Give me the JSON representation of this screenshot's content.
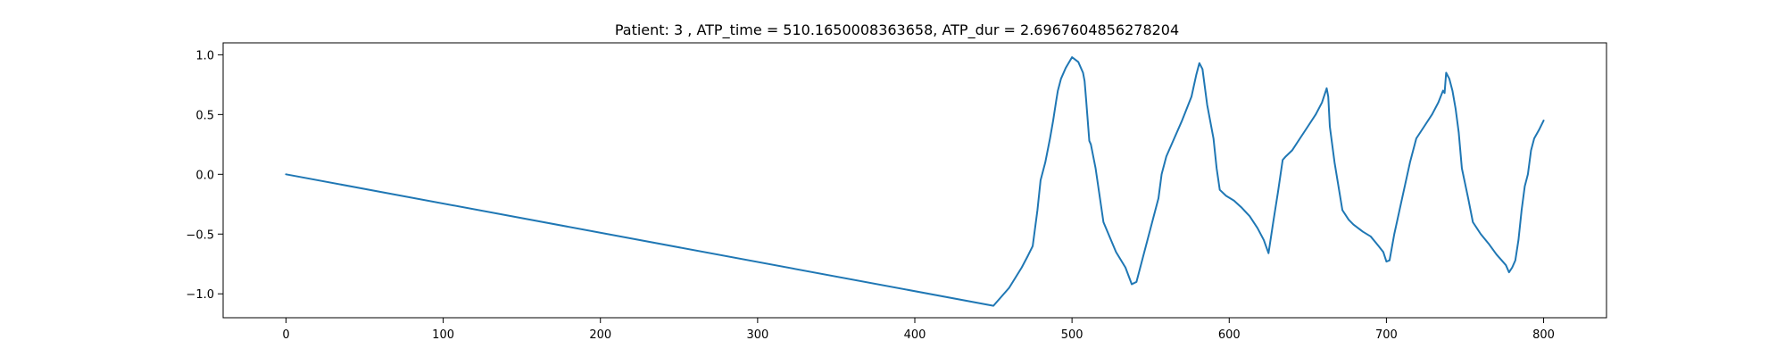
{
  "chart_data": {
    "type": "line",
    "title": "Patient: 3 , ATP_time = 510.1650008363658, ATP_dur = 2.6967604856278204",
    "xlabel": "",
    "ylabel": "",
    "xlim": [
      -40,
      840
    ],
    "ylim": [
      -1.2,
      1.1
    ],
    "xticks": [
      0,
      100,
      200,
      300,
      400,
      500,
      600,
      700,
      800
    ],
    "yticks": [
      -1.0,
      -0.5,
      0.0,
      0.5,
      1.0
    ],
    "xtick_labels": [
      "0",
      "100",
      "200",
      "300",
      "400",
      "500",
      "600",
      "700",
      "800"
    ],
    "ytick_labels": [
      "−1.0",
      "−0.5",
      "0.0",
      "0.5",
      "1.0"
    ],
    "grid": false,
    "line_color": "#1f77b4",
    "series": [
      {
        "x": [
          0,
          450,
          460,
          468,
          472,
          475,
          478,
          480,
          483,
          486,
          488,
          490,
          491,
          492,
          493,
          496,
          500,
          504,
          507,
          508,
          509,
          511,
          512,
          515,
          520,
          528,
          534,
          536,
          538,
          541,
          545,
          549,
          552,
          555,
          557,
          560,
          565,
          570,
          576,
          579,
          581,
          583,
          586,
          590,
          592,
          594,
          598,
          603,
          608,
          613,
          618,
          622,
          625,
          628,
          631,
          634,
          636,
          640,
          645,
          650,
          655,
          659,
          662,
          663,
          664,
          667,
          672,
          676,
          679,
          685,
          690,
          695,
          698,
          700,
          702,
          705,
          710,
          715,
          719,
          724,
          729,
          733,
          736,
          737,
          738,
          740,
          742,
          744,
          746,
          748,
          752,
          755,
          760,
          765,
          770,
          774,
          776,
          778,
          780,
          782,
          784,
          786,
          788,
          790,
          792,
          794,
          797,
          800
        ],
        "y": [
          0.0,
          -1.1,
          -0.95,
          -0.78,
          -0.68,
          -0.6,
          -0.3,
          -0.05,
          0.1,
          0.3,
          0.45,
          0.62,
          0.7,
          0.75,
          0.8,
          0.89,
          0.98,
          0.94,
          0.85,
          0.78,
          0.62,
          0.28,
          0.25,
          0.05,
          -0.4,
          -0.65,
          -0.78,
          -0.85,
          -0.92,
          -0.9,
          -0.7,
          -0.5,
          -0.35,
          -0.2,
          0.0,
          0.15,
          0.3,
          0.45,
          0.65,
          0.83,
          0.93,
          0.88,
          0.58,
          0.3,
          0.05,
          -0.13,
          -0.18,
          -0.22,
          -0.28,
          -0.35,
          -0.45,
          -0.55,
          -0.66,
          -0.4,
          -0.15,
          0.12,
          0.15,
          0.2,
          0.3,
          0.4,
          0.5,
          0.6,
          0.72,
          0.65,
          0.4,
          0.1,
          -0.3,
          -0.38,
          -0.42,
          -0.48,
          -0.52,
          -0.6,
          -0.65,
          -0.73,
          -0.72,
          -0.5,
          -0.2,
          0.1,
          0.3,
          0.4,
          0.5,
          0.6,
          0.7,
          0.68,
          0.85,
          0.8,
          0.7,
          0.55,
          0.35,
          0.05,
          -0.2,
          -0.4,
          -0.5,
          -0.58,
          -0.67,
          -0.73,
          -0.76,
          -0.82,
          -0.78,
          -0.72,
          -0.55,
          -0.3,
          -0.1,
          0.0,
          0.2,
          0.3,
          0.37,
          0.45
        ]
      }
    ]
  }
}
